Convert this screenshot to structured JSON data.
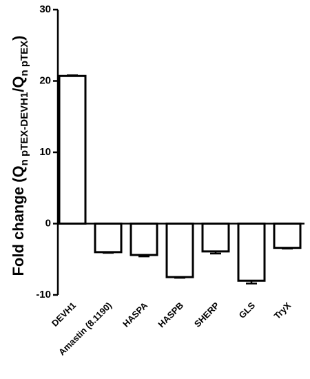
{
  "chart_data": {
    "type": "bar",
    "ylabel": [
      "Fold change (Q",
      "n pTEX-DEVH1",
      "/Q",
      "n pTEX",
      ")"
    ],
    "categories": [
      "DEVH1",
      "Amastin (8.1190)",
      "HASPA",
      "HASPB",
      "SHERP",
      "GLS",
      "TryX"
    ],
    "values": [
      20.7,
      -4.0,
      -4.4,
      -7.5,
      -3.9,
      -8.0,
      -3.4
    ],
    "errors": [
      0.1,
      0.1,
      0.2,
      0.1,
      0.3,
      0.4,
      0.1
    ],
    "color": "#ffffff",
    "ylim": [
      -10,
      30
    ],
    "yticks": [
      -10,
      0,
      10,
      20,
      30
    ]
  }
}
